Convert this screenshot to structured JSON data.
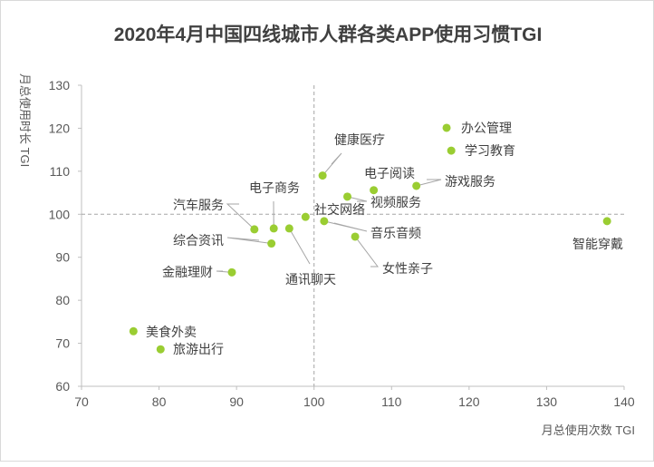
{
  "chart_data": {
    "type": "scatter",
    "title": "2020年4月中国四线城市人群各类APP使用习惯TGI",
    "xlabel": "月总使用次数 TGI",
    "ylabel": "月总使用时长 TGI",
    "xlim": [
      70,
      140
    ],
    "ylim": [
      60,
      130
    ],
    "xticks": [
      70,
      80,
      90,
      100,
      110,
      120,
      130,
      140
    ],
    "yticks": [
      60,
      70,
      80,
      90,
      100,
      110,
      120,
      130
    ],
    "reference_lines": {
      "x": 100,
      "y": 100
    },
    "grid": false,
    "point_color": "#9ACD32",
    "points": [
      {
        "label": "办公管理",
        "x": 117.1,
        "y": 120.1
      },
      {
        "label": "学习教育",
        "x": 117.7,
        "y": 114.8
      },
      {
        "label": "游戏服务",
        "x": 113.2,
        "y": 106.6
      },
      {
        "label": "电子阅读",
        "x": 107.7,
        "y": 105.6
      },
      {
        "label": "视频服务",
        "x": 104.3,
        "y": 104.1
      },
      {
        "label": "健康医疗",
        "x": 101.1,
        "y": 109.0
      },
      {
        "label": "社交网络",
        "x": 98.9,
        "y": 99.4
      },
      {
        "label": "音乐音频",
        "x": 101.3,
        "y": 98.4
      },
      {
        "label": "女性亲子",
        "x": 105.3,
        "y": 94.8
      },
      {
        "label": "智能穿戴",
        "x": 137.8,
        "y": 98.4
      },
      {
        "label": "汽车服务",
        "x": 92.3,
        "y": 96.5
      },
      {
        "label": "电子商务",
        "x": 94.8,
        "y": 96.7
      },
      {
        "label": "通讯聊天",
        "x": 96.8,
        "y": 96.7
      },
      {
        "label": "综合资讯",
        "x": 94.5,
        "y": 93.2
      },
      {
        "label": "金融理财",
        "x": 89.4,
        "y": 86.5
      },
      {
        "label": "美食外卖",
        "x": 76.7,
        "y": 72.8
      },
      {
        "label": "旅游出行",
        "x": 80.2,
        "y": 68.6
      }
    ]
  }
}
